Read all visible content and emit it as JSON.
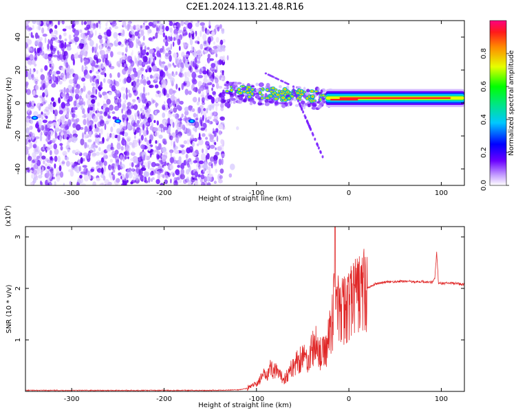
{
  "title": "C2E1.2024.113.21.48.R16",
  "colors": {
    "snr_line": "#e02828",
    "frame": "#000000"
  },
  "chart_data": [
    {
      "type": "heatmap",
      "xlabel": "Height of straight line (km)",
      "ylabel": "Frequency (Hz)",
      "xlim": [
        -350,
        125
      ],
      "ylim": [
        -50,
        50
      ],
      "xticks": [
        -300,
        -200,
        -100,
        0,
        100
      ],
      "yticks": [
        -40,
        -20,
        0,
        20,
        40
      ],
      "colorbar": {
        "label": "Normalized spectral amplitude",
        "range": [
          0.0,
          1.0
        ],
        "ticks": [
          "0.0",
          "0.2",
          "0.4",
          "0.6",
          "0.8"
        ],
        "colormap": "rainbow (violet to red)"
      },
      "features": [
        {
          "region_x": [
            -350,
            -135
          ],
          "region_y": [
            -50,
            50
          ],
          "description": "scattered violet speckle, normalized amplitude ~0.05-0.2"
        },
        {
          "region_x": [
            -140,
            -20
          ],
          "center_freq_hz": 6,
          "amplitude": 0.5
        },
        {
          "region_x": [
            -20,
            125
          ],
          "center_freq_hz": 3,
          "amplitude": 0.9
        }
      ]
    },
    {
      "type": "line",
      "xlabel": "Height of straight line (km)",
      "ylabel": "SNR (10 * v/v)",
      "y_multiplier": "(x10⁴)",
      "y_multiplier_base": "(x10",
      "y_multiplier_exp": "4",
      "y_multiplier_close": ")",
      "xlim": [
        -350,
        125
      ],
      "ylim": [
        0,
        3.2
      ],
      "xticks": [
        -300,
        -200,
        -100,
        0,
        100
      ],
      "yticks": [
        1,
        2,
        3
      ],
      "series": [
        {
          "x": [
            -350,
            -300,
            -250,
            -200,
            -150,
            -120,
            -110,
            -100,
            -95,
            -90,
            -85,
            -80,
            -75,
            -70,
            -65,
            -60,
            -55,
            -50,
            -45,
            -40,
            -35,
            -30,
            -25,
            -20,
            -17,
            -15,
            -12,
            -10,
            -5,
            0,
            5,
            10,
            15,
            20,
            25,
            30,
            40,
            50,
            60,
            70,
            80,
            90,
            93,
            95,
            97,
            100,
            110,
            125
          ],
          "y": [
            0.02,
            0.02,
            0.02,
            0.02,
            0.02,
            0.03,
            0.06,
            0.15,
            0.25,
            0.35,
            0.45,
            0.4,
            0.3,
            0.25,
            0.35,
            0.5,
            0.6,
            0.7,
            0.6,
            0.8,
            0.9,
            0.7,
            0.8,
            1.2,
            1.5,
            3.1,
            1.6,
            1.5,
            1.6,
            1.7,
            1.8,
            1.9,
            1.95,
            2.0,
            2.05,
            2.1,
            2.12,
            2.13,
            2.14,
            2.13,
            2.13,
            2.12,
            2.2,
            2.7,
            2.1,
            2.1,
            2.1,
            2.08
          ]
        }
      ]
    }
  ]
}
